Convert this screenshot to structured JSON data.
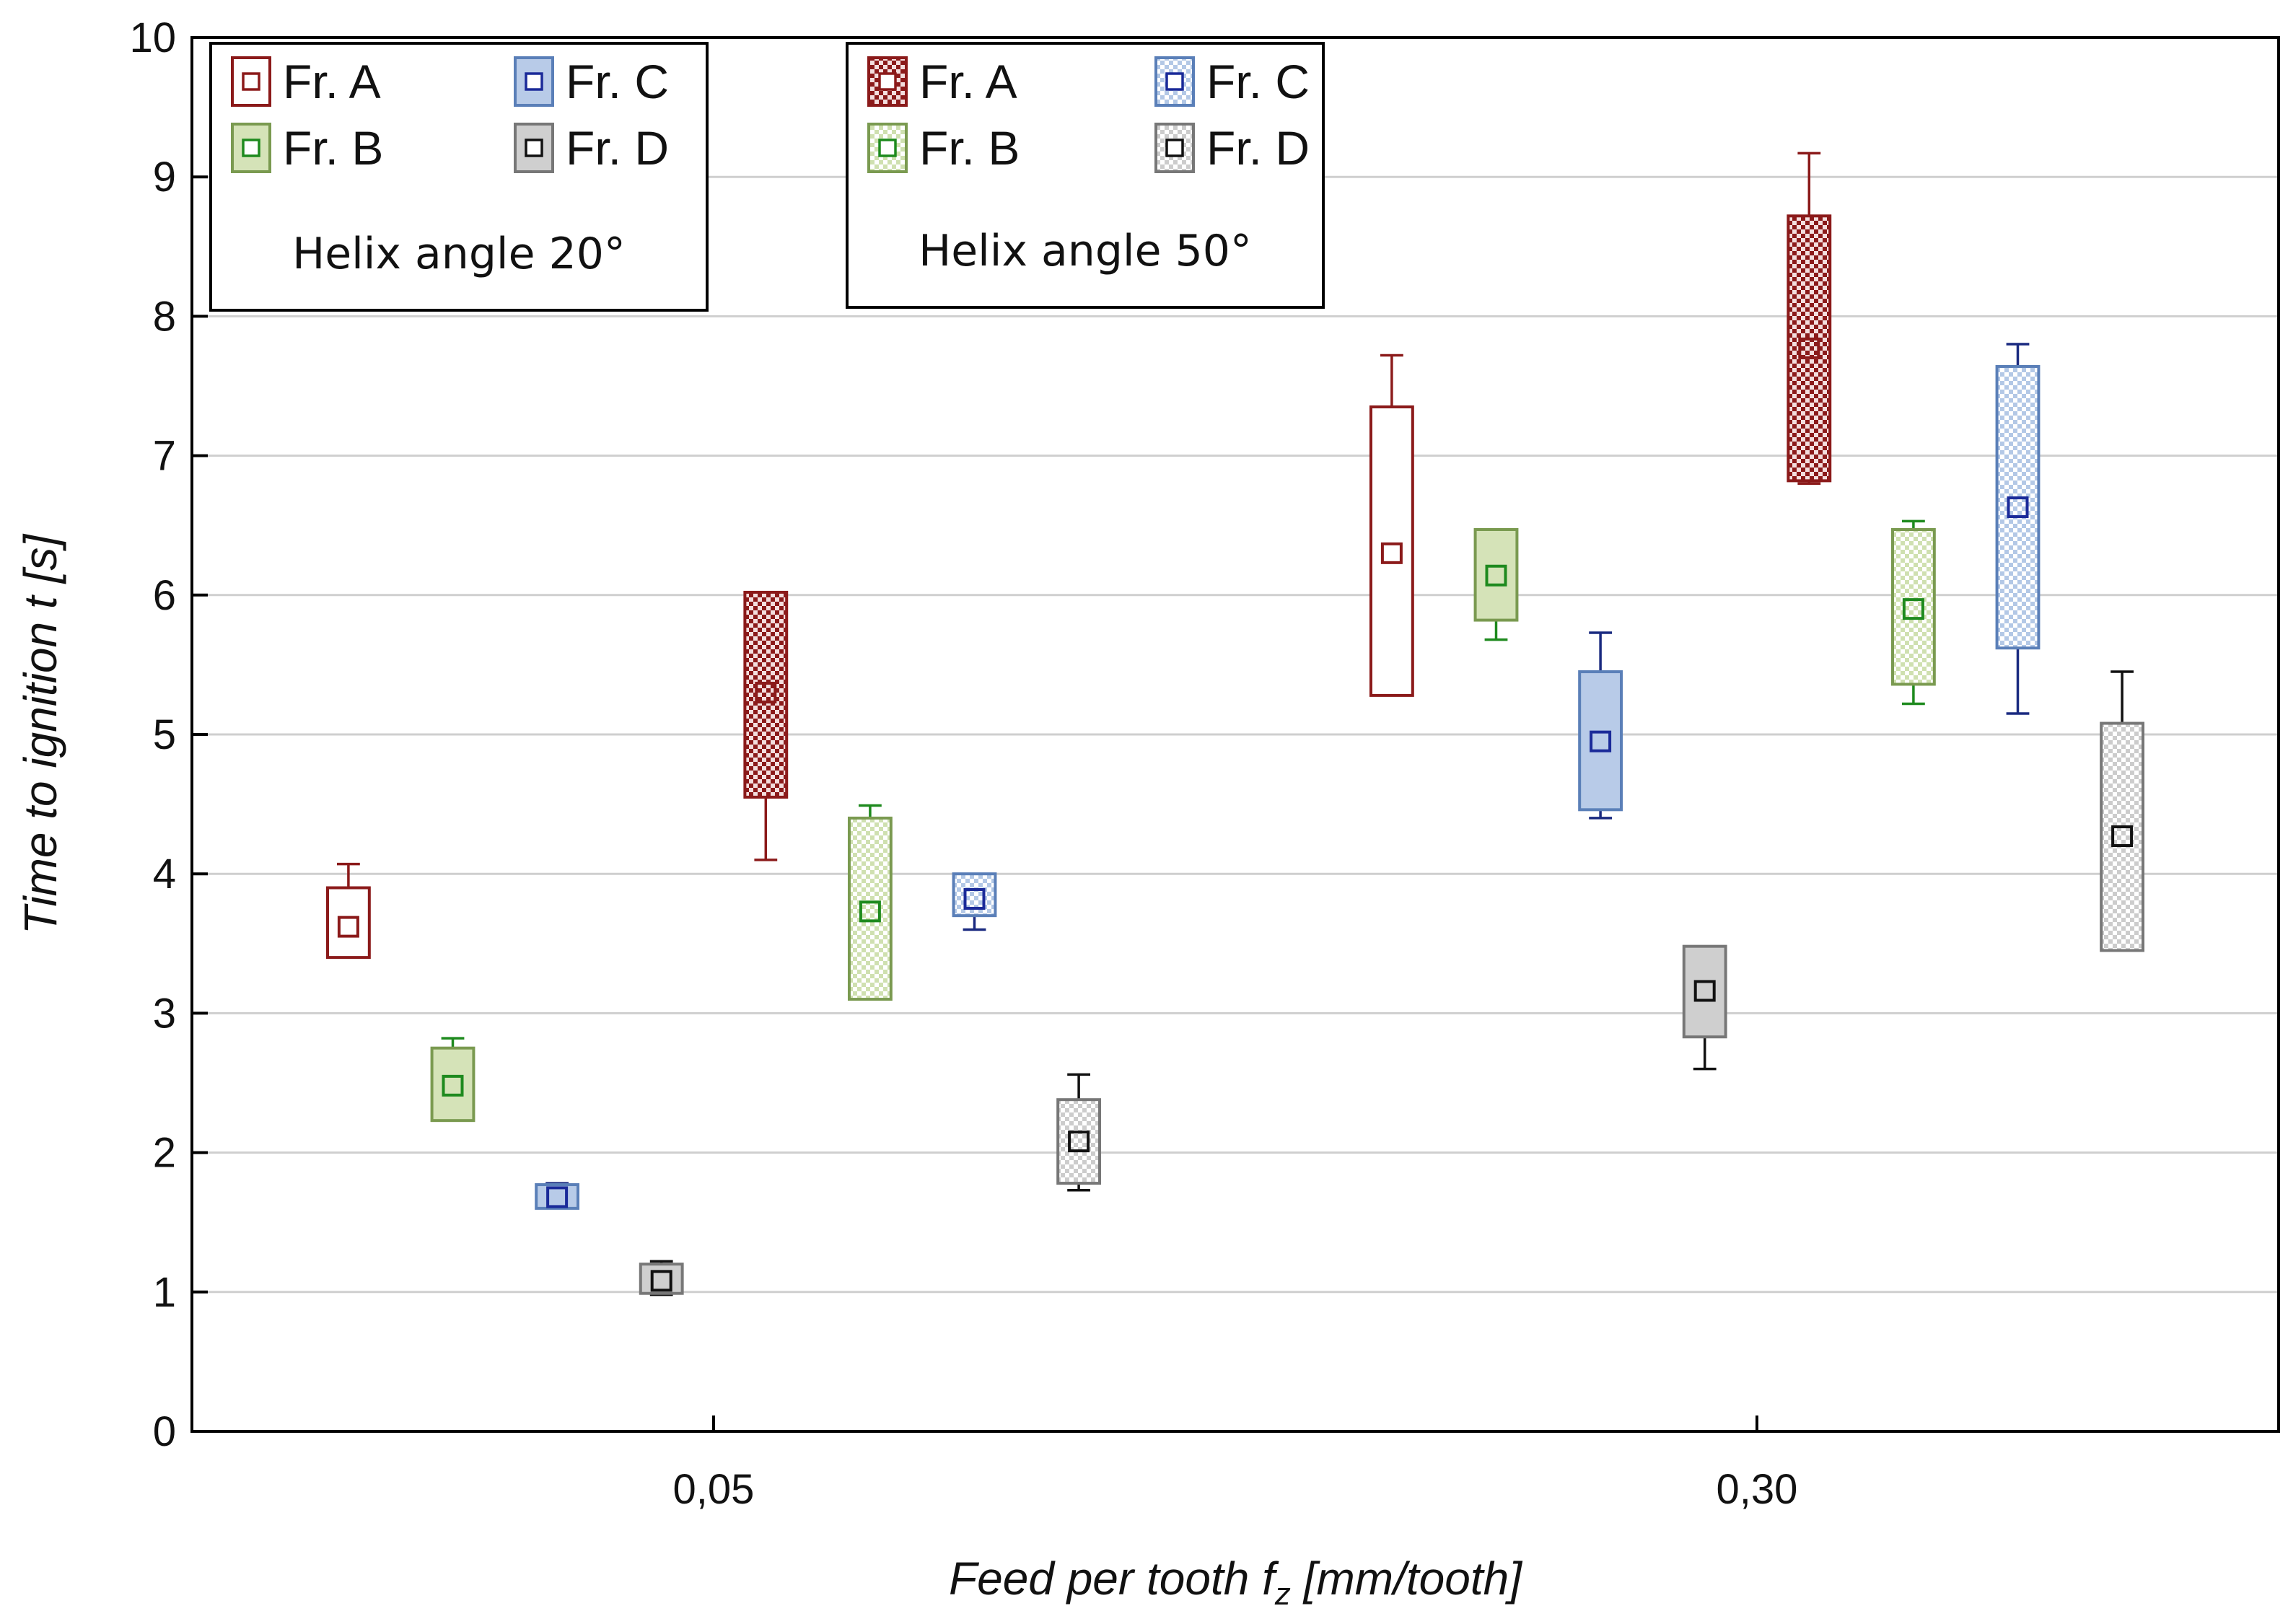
{
  "chart_data": {
    "type": "box",
    "title": "",
    "xlabel_prefix": "Feed per tooth f",
    "xlabel_sub": "z",
    "xlabel_suffix": " [mm/tooth]",
    "ylabel": "Time to ignition t [s]",
    "ylim": [
      0,
      10
    ],
    "yticks": [
      "0",
      "1",
      "2",
      "3",
      "4",
      "5",
      "6",
      "7",
      "8",
      "9",
      "10"
    ],
    "categories": [
      "0,05",
      "0,30"
    ],
    "colors": {
      "Fr. A": {
        "stroke": "#8b1a1a",
        "fill": "#8b1a1a"
      },
      "Fr. B": {
        "stroke": "#7a9a50",
        "fill": "#d5e3b8",
        "marker": "#1e8a1e"
      },
      "Fr. C": {
        "stroke": "#5a7fb8",
        "fill": "#b8cbe8",
        "marker": "#1a2a99"
      },
      "Fr. D": {
        "stroke": "#777777",
        "fill": "#cfcfcf",
        "marker": "#111111"
      }
    },
    "series": [
      {
        "name": "Fr. A",
        "helix": "20°",
        "category": "0,05",
        "min": 3.4,
        "q1": 3.4,
        "median": 3.62,
        "q3": 3.9,
        "max": 4.07
      },
      {
        "name": "Fr. B",
        "helix": "20°",
        "category": "0,05",
        "min": 2.23,
        "q1": 2.23,
        "median": 2.48,
        "q3": 2.75,
        "max": 2.82
      },
      {
        "name": "Fr. C",
        "helix": "20°",
        "category": "0,05",
        "min": 1.6,
        "q1": 1.6,
        "median": 1.68,
        "q3": 1.77,
        "max": 1.78
      },
      {
        "name": "Fr. D",
        "helix": "20°",
        "category": "0,05",
        "min": 0.98,
        "q1": 0.99,
        "median": 1.08,
        "q3": 1.2,
        "max": 1.22
      },
      {
        "name": "Fr. A",
        "helix": "50°",
        "category": "0,05",
        "min": 4.1,
        "q1": 4.55,
        "median": 5.3,
        "q3": 6.02,
        "max": 6.02
      },
      {
        "name": "Fr. B",
        "helix": "50°",
        "category": "0,05",
        "min": 3.1,
        "q1": 3.1,
        "median": 3.73,
        "q3": 4.4,
        "max": 4.49
      },
      {
        "name": "Fr. C",
        "helix": "50°",
        "category": "0,05",
        "min": 3.6,
        "q1": 3.7,
        "median": 3.82,
        "q3": 4.0,
        "max": 4.0
      },
      {
        "name": "Fr. D",
        "helix": "50°",
        "category": "0,05",
        "min": 1.73,
        "q1": 1.78,
        "median": 2.08,
        "q3": 2.38,
        "max": 2.56
      },
      {
        "name": "Fr. A",
        "helix": "20°",
        "category": "0,30",
        "min": 5.28,
        "q1": 5.28,
        "median": 6.3,
        "q3": 7.35,
        "max": 7.72
      },
      {
        "name": "Fr. B",
        "helix": "20°",
        "category": "0,30",
        "min": 5.68,
        "q1": 5.82,
        "median": 6.14,
        "q3": 6.47,
        "max": 6.47
      },
      {
        "name": "Fr. C",
        "helix": "20°",
        "category": "0,30",
        "min": 4.4,
        "q1": 4.46,
        "median": 4.95,
        "q3": 5.45,
        "max": 5.73
      },
      {
        "name": "Fr. D",
        "helix": "20°",
        "category": "0,30",
        "min": 2.6,
        "q1": 2.83,
        "median": 3.16,
        "q3": 3.48,
        "max": 3.48
      },
      {
        "name": "Fr. A",
        "helix": "50°",
        "category": "0,30",
        "min": 6.8,
        "q1": 6.82,
        "median": 7.77,
        "q3": 8.72,
        "max": 9.17
      },
      {
        "name": "Fr. B",
        "helix": "50°",
        "category": "0,30",
        "min": 5.22,
        "q1": 5.36,
        "median": 5.9,
        "q3": 6.47,
        "max": 6.53
      },
      {
        "name": "Fr. C",
        "helix": "50°",
        "category": "0,30",
        "min": 5.15,
        "q1": 5.62,
        "median": 6.63,
        "q3": 7.64,
        "max": 7.8
      },
      {
        "name": "Fr. D",
        "helix": "50°",
        "category": "0,30",
        "min": 3.45,
        "q1": 3.45,
        "median": 4.27,
        "q3": 5.08,
        "max": 5.45
      }
    ],
    "legend": [
      {
        "caption": "Helix angle 20°",
        "pattern": "solid",
        "items": [
          "Fr. A",
          "Fr. B",
          "Fr. C",
          "Fr. D"
        ]
      },
      {
        "caption": "Helix angle 50°",
        "pattern": "checkered",
        "items": [
          "Fr. A",
          "Fr. B",
          "Fr. C",
          "Fr. D"
        ]
      }
    ],
    "legend_position": "top-left",
    "grid": true
  }
}
